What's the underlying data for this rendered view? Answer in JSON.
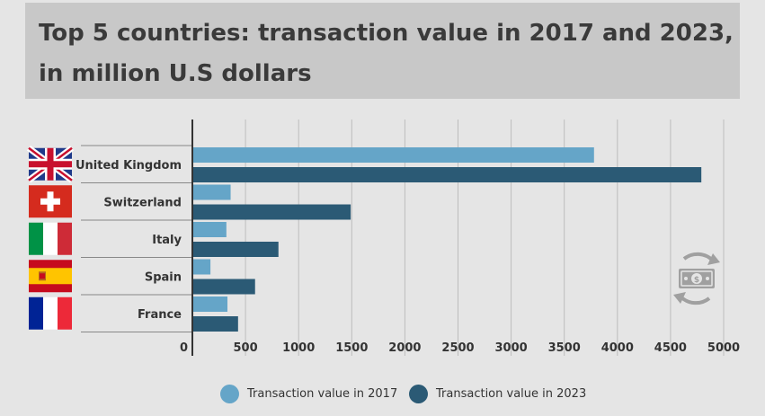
{
  "title": {
    "line1": "Top 5 countries: transaction value in 2017 and 2023,",
    "line2": "in million U.S dollars"
  },
  "colors": {
    "series2017": "#65a5c8",
    "series2023": "#2b5a75",
    "grid": "#bdbdbd",
    "axis": "#333333"
  },
  "legend": {
    "item1": "Transaction value in 2017",
    "item2": "Transaction value in 2023"
  },
  "icons": {
    "flags": [
      "uk-flag-icon",
      "switzerland-flag-icon",
      "italy-flag-icon",
      "spain-flag-icon",
      "france-flag-icon"
    ],
    "money": "money-exchange-icon"
  },
  "chart_data": {
    "type": "bar",
    "orientation": "horizontal",
    "title": "Top 5 countries: transaction value in 2017 and 2023, in million U.S dollars",
    "categories": [
      "United Kingdom",
      "Switzerland",
      "Italy",
      "Spain",
      "France"
    ],
    "series": [
      {
        "name": "Transaction value in 2017",
        "values": [
          3780,
          360,
          320,
          170,
          330
        ]
      },
      {
        "name": "Transaction value in 2023",
        "values": [
          4790,
          1490,
          810,
          590,
          430
        ]
      }
    ],
    "xlim": [
      0,
      5000
    ],
    "xticks": [
      0,
      500,
      1000,
      1500,
      2000,
      2500,
      3000,
      3500,
      4000,
      4500,
      5000
    ],
    "grid": true,
    "legend_position": "bottom"
  }
}
